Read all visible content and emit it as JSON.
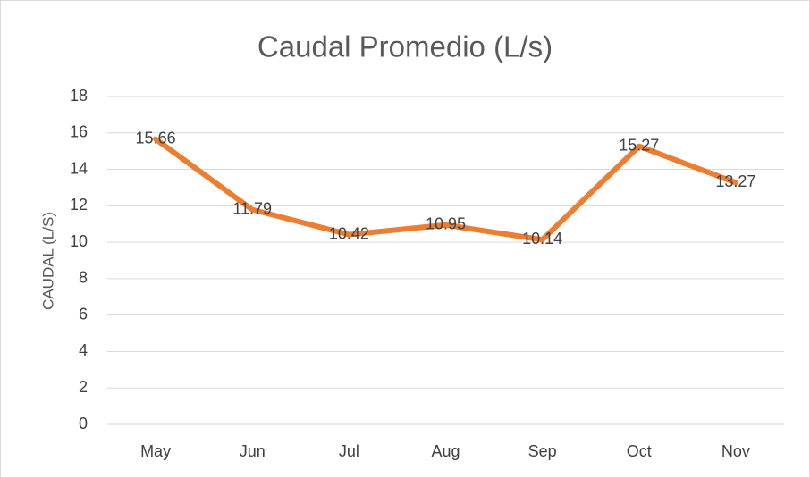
{
  "chart_data": {
    "type": "line",
    "title": "Caudal Promedio (L/s)",
    "ylabel": "CAUDAL (L/S)",
    "categories": [
      "May",
      "Jun",
      "Jul",
      "Aug",
      "Sep",
      "Oct",
      "Nov"
    ],
    "series": [
      {
        "name": "Caudal",
        "color": "#ed7d31",
        "values": [
          15.66,
          11.79,
          10.42,
          10.95,
          10.14,
          15.27,
          13.27
        ]
      }
    ],
    "ylim": [
      0,
      18
    ],
    "yticks": [
      0,
      2,
      4,
      6,
      8,
      10,
      12,
      14,
      16,
      18
    ],
    "grid": true,
    "data_labels": true
  }
}
